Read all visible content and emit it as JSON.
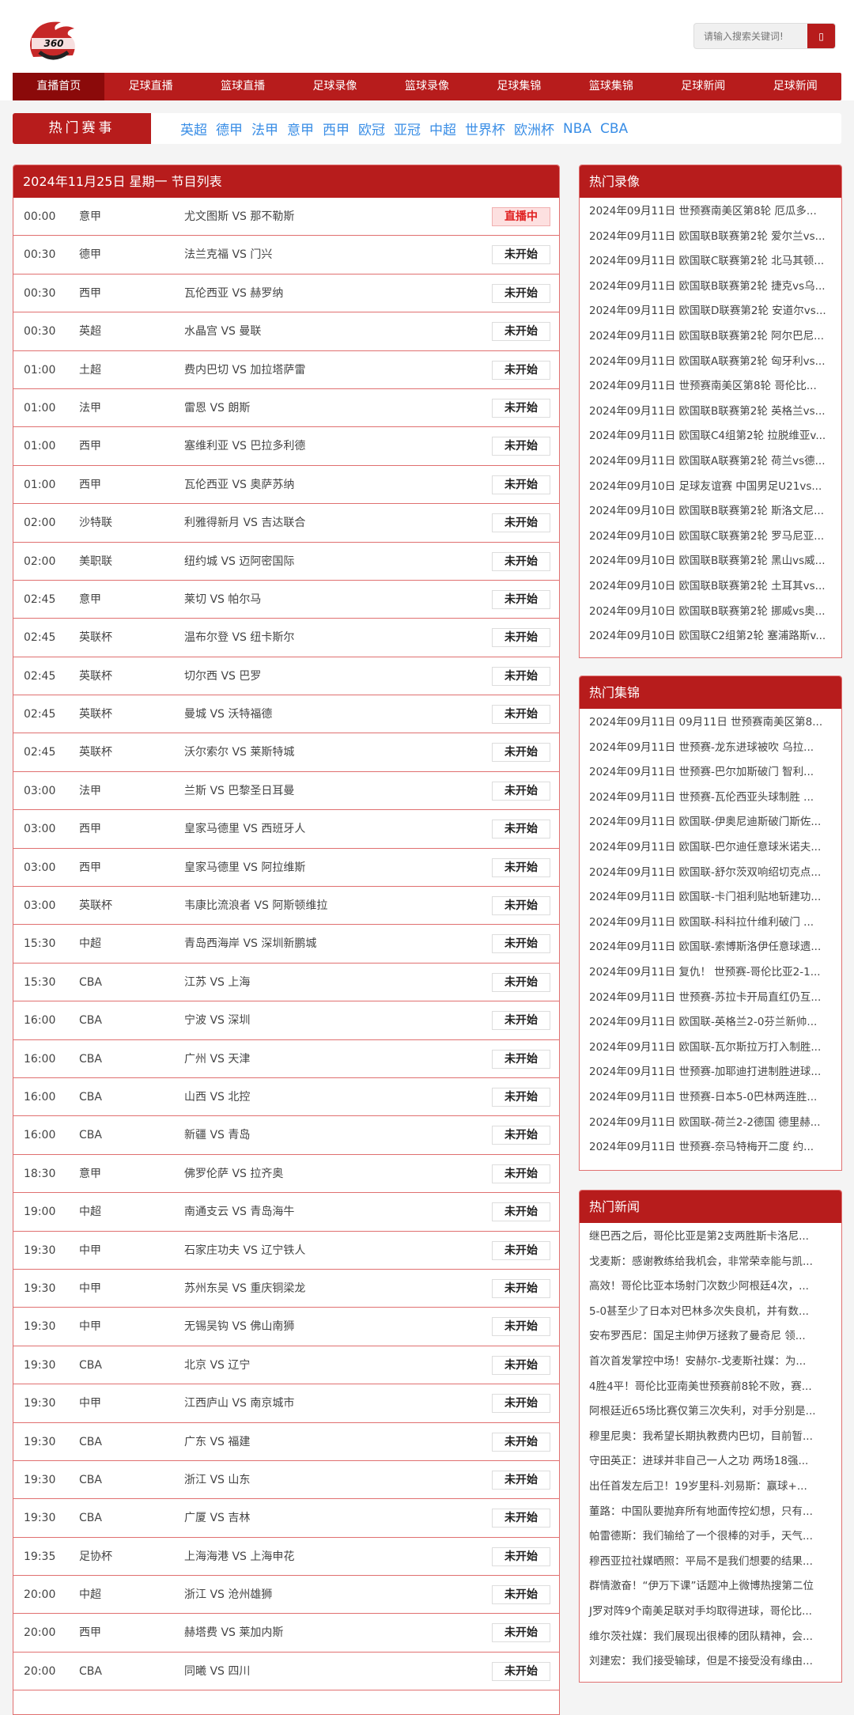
{
  "header": {
    "logo_text": "360直播吧",
    "search_placeholder": "请输入搜索关键词!",
    "search_button": "▯"
  },
  "nav": [
    "直播首页",
    "足球直播",
    "篮球直播",
    "足球录像",
    "篮球录像",
    "足球集锦",
    "篮球集锦",
    "足球新闻",
    "足球新闻"
  ],
  "hot_events": {
    "label": "热门赛事",
    "items": [
      "英超",
      "德甲",
      "法甲",
      "意甲",
      "西甲",
      "欧冠",
      "亚冠",
      "中超",
      "世界杯",
      "欧洲杯",
      "NBA",
      "CBA"
    ]
  },
  "schedule": {
    "title": "2024年11月25日 星期一 节目列表",
    "rows": [
      [
        "00:00",
        "意甲",
        "尤文图斯 VS 那不勒斯",
        "直播中"
      ],
      [
        "00:30",
        "德甲",
        "法兰克福 VS 门兴",
        "未开始"
      ],
      [
        "00:30",
        "西甲",
        "瓦伦西亚 VS 赫罗纳",
        "未开始"
      ],
      [
        "00:30",
        "英超",
        "水晶宫 VS 曼联",
        "未开始"
      ],
      [
        "01:00",
        "土超",
        "费内巴切 VS 加拉塔萨雷",
        "未开始"
      ],
      [
        "01:00",
        "法甲",
        "雷恩 VS 朗斯",
        "未开始"
      ],
      [
        "01:00",
        "西甲",
        "塞维利亚 VS 巴拉多利德",
        "未开始"
      ],
      [
        "01:00",
        "西甲",
        "瓦伦西亚 VS 奥萨苏纳",
        "未开始"
      ],
      [
        "02:00",
        "沙特联",
        "利雅得新月 VS 吉达联合",
        "未开始"
      ],
      [
        "02:00",
        "美职联",
        "纽约城 VS 迈阿密国际",
        "未开始"
      ],
      [
        "02:45",
        "意甲",
        "莱切 VS 帕尔马",
        "未开始"
      ],
      [
        "02:45",
        "英联杯",
        "温布尔登 VS 纽卡斯尔",
        "未开始"
      ],
      [
        "02:45",
        "英联杯",
        "切尔西 VS 巴罗",
        "未开始"
      ],
      [
        "02:45",
        "英联杯",
        "曼城 VS 沃特福德",
        "未开始"
      ],
      [
        "02:45",
        "英联杯",
        "沃尔索尔 VS 莱斯特城",
        "未开始"
      ],
      [
        "03:00",
        "法甲",
        "兰斯 VS 巴黎圣日耳曼",
        "未开始"
      ],
      [
        "03:00",
        "西甲",
        "皇家马德里 VS 西班牙人",
        "未开始"
      ],
      [
        "03:00",
        "西甲",
        "皇家马德里 VS 阿拉维斯",
        "未开始"
      ],
      [
        "03:00",
        "英联杯",
        "韦康比流浪者 VS 阿斯顿维拉",
        "未开始"
      ],
      [
        "15:30",
        "中超",
        "青岛西海岸 VS 深圳新鹏城",
        "未开始"
      ],
      [
        "15:30",
        "CBA",
        "江苏 VS 上海",
        "未开始"
      ],
      [
        "16:00",
        "CBA",
        "宁波 VS 深圳",
        "未开始"
      ],
      [
        "16:00",
        "CBA",
        "广州 VS 天津",
        "未开始"
      ],
      [
        "16:00",
        "CBA",
        "山西 VS 北控",
        "未开始"
      ],
      [
        "16:00",
        "CBA",
        "新疆 VS 青岛",
        "未开始"
      ],
      [
        "18:30",
        "意甲",
        "佛罗伦萨 VS 拉齐奥",
        "未开始"
      ],
      [
        "19:00",
        "中超",
        "南通支云 VS 青岛海牛",
        "未开始"
      ],
      [
        "19:30",
        "中甲",
        "石家庄功夫 VS 辽宁铁人",
        "未开始"
      ],
      [
        "19:30",
        "中甲",
        "苏州东吴 VS 重庆铜梁龙",
        "未开始"
      ],
      [
        "19:30",
        "中甲",
        "无锡吴钩 VS 佛山南狮",
        "未开始"
      ],
      [
        "19:30",
        "CBA",
        "北京 VS 辽宁",
        "未开始"
      ],
      [
        "19:30",
        "中甲",
        "江西庐山 VS 南京城市",
        "未开始"
      ],
      [
        "19:30",
        "CBA",
        "广东 VS 福建",
        "未开始"
      ],
      [
        "19:30",
        "CBA",
        "浙江 VS 山东",
        "未开始"
      ],
      [
        "19:30",
        "CBA",
        "广厦 VS 吉林",
        "未开始"
      ],
      [
        "19:35",
        "足协杯",
        "上海海港 VS 上海申花",
        "未开始"
      ],
      [
        "20:00",
        "中超",
        "浙江 VS 沧州雄狮",
        "未开始"
      ],
      [
        "20:00",
        "西甲",
        "赫塔费 VS 莱加内斯",
        "未开始"
      ],
      [
        "20:00",
        "CBA",
        "同曦 VS 四川",
        "未开始"
      ]
    ]
  },
  "hot_videos": {
    "title": "热门录像",
    "items": [
      "2024年09月11日 世预赛南美区第8轮 厄瓜多...",
      "2024年09月11日 欧国联B联赛第2轮 爱尔兰vs...",
      "2024年09月11日 欧国联C联赛第2轮 北马其顿...",
      "2024年09月11日 欧国联B联赛第2轮 捷克vs乌...",
      "2024年09月11日 欧国联D联赛第2轮 安道尔vs...",
      "2024年09月11日 欧国联B联赛第2轮 阿尔巴尼...",
      "2024年09月11日 欧国联A联赛第2轮 匈牙利vs...",
      "2024年09月11日 世预赛南美区第8轮 哥伦比...",
      "2024年09月11日 欧国联B联赛第2轮 英格兰vs...",
      "2024年09月11日 欧国联C4组第2轮 拉脱维亚v...",
      "2024年09月11日 欧国联A联赛第2轮 荷兰vs德...",
      "2024年09月10日 足球友谊赛 中国男足U21vs...",
      "2024年09月10日 欧国联B联赛第2轮 斯洛文尼...",
      "2024年09月10日 欧国联C联赛第2轮 罗马尼亚...",
      "2024年09月10日 欧国联B联赛第2轮 黑山vs威...",
      "2024年09月10日 欧国联B联赛第2轮 土耳其vs...",
      "2024年09月10日 欧国联B联赛第2轮 挪威vs奥...",
      "2024年09月10日 欧国联C2组第2轮 塞浦路斯v..."
    ]
  },
  "hot_highlights": {
    "title": "热门集锦",
    "items": [
      "2024年09月11日 09月11日 世预赛南美区第8...",
      "2024年09月11日 世预赛-龙东进球被吹 乌拉...",
      "2024年09月11日 世预赛-巴尔加斯破门 智利...",
      "2024年09月11日 世预赛-瓦伦西亚头球制胜 ...",
      "2024年09月11日 欧国联-伊奥尼迪斯破门斯佐...",
      "2024年09月11日 欧国联-巴尔迪任意球米诺夫...",
      "2024年09月11日 欧国联-舒尔茨双响绍切克点...",
      "2024年09月11日 欧国联-卡门祖利贴地斩建功...",
      "2024年09月11日 欧国联-科科拉什维利破门 ...",
      "2024年09月11日 欧国联-索博斯洛伊任意球遗...",
      "2024年09月11日 复仇！ 世预赛-哥伦比亚2-1...",
      "2024年09月11日 世预赛-苏拉卡开局直红仍互...",
      "2024年09月11日 欧国联-英格兰2-0芬兰新帅...",
      "2024年09月11日 欧国联-瓦尔斯拉万打入制胜...",
      "2024年09月11日 世预赛-加耶迪打进制胜进球...",
      "2024年09月11日 世预赛-日本5-0巴林两连胜...",
      "2024年09月11日 欧国联-荷兰2-2德国 德里赫...",
      "2024年09月11日 世预赛-奈马特梅开二度 约..."
    ]
  },
  "hot_news": {
    "title": "热门新闻",
    "items": [
      "继巴西之后，哥伦比亚是第2支两胜斯卡洛尼...",
      "戈麦斯：感谢教练给我机会，非常荣幸能与凯...",
      "高效！哥伦比亚本场射门次数少阿根廷4次，...",
      "5-0甚至少了日本对巴林多次失良机，并有数...",
      "安布罗西尼：国足主帅伊万拯救了曼奇尼 领...",
      "首次首发掌控中场！安赫尔-戈麦斯社媒：为...",
      "4胜4平！哥伦比亚南美世预赛前8轮不败，赛...",
      "阿根廷近65场比赛仅第三次失利，对手分别是...",
      "穆里尼奥：我希望长期执教费内巴切，目前暂...",
      "守田英正：进球并非自己一人之功 两场18强...",
      "出任首发左后卫！19岁里科-刘易斯：赢球+...",
      "董路：中国队要抛弃所有地面传控幻想，只有...",
      "帕雷德斯：我们输给了一个很棒的对手，天气...",
      "穆西亚拉社媒晒照：平局不是我们想要的结果...",
      "群情激奋！“伊万下课”话题冲上微博热搜第二位",
      "J罗对阵9个南美足联对手均取得进球，哥伦比...",
      "维尔茨社媒：我们展现出很棒的团队精神，会...",
      "刘建宏：我们接受输球，但是不接受没有缘由..."
    ]
  },
  "colors": {
    "brand": "#b71c1c",
    "nav_active": "#8b0a0a",
    "link": "#3a8ee6",
    "live_bg": "#fde0e0",
    "live_text": "#e02020"
  }
}
